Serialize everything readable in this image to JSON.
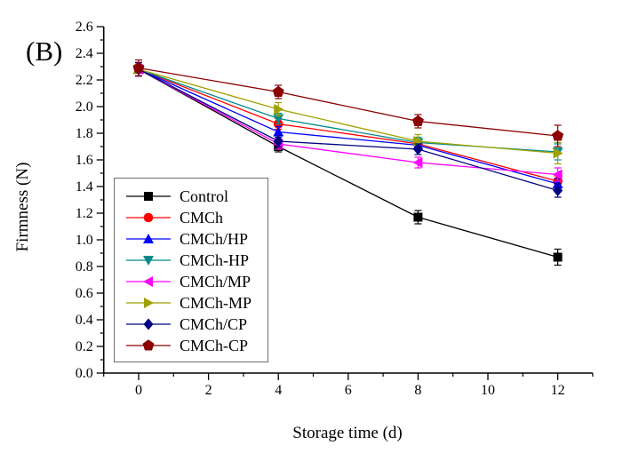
{
  "panel_label": "(B)",
  "chart_data": {
    "type": "line",
    "title": "",
    "xlabel": "Storage time (d)",
    "ylabel": "Firmness (N)",
    "x": [
      0,
      4,
      8,
      12
    ],
    "xlim": [
      -1,
      13
    ],
    "ylim": [
      0.0,
      2.6
    ],
    "grid": "off",
    "error_bars": true,
    "legend_position": "inside-middle-left",
    "x_major_ticks": [
      0,
      2,
      4,
      6,
      8,
      10,
      12
    ],
    "x_tick_labels": [
      "0",
      "2",
      "4",
      "6",
      "8",
      "10",
      "12"
    ],
    "x_minor_ticks": [
      -1,
      1,
      3,
      5,
      7,
      9,
      11,
      13
    ],
    "y_major_ticks": [
      0.0,
      0.2,
      0.4,
      0.6,
      0.8,
      1.0,
      1.2,
      1.4,
      1.6,
      1.8,
      2.0,
      2.2,
      2.4,
      2.6
    ],
    "y_tick_labels": [
      "0.0",
      "0.2",
      "0.4",
      "0.6",
      "0.8",
      "1.0",
      "1.2",
      "1.4",
      "1.6",
      "1.8",
      "2.0",
      "2.2",
      "2.4",
      "2.6"
    ],
    "y_minor_step": 0.1,
    "series": [
      {
        "name": "Control",
        "color": "#000000",
        "marker": "square",
        "values": [
          2.28,
          1.7,
          1.17,
          0.87
        ],
        "errors": [
          0.05,
          0.04,
          0.05,
          0.06
        ]
      },
      {
        "name": "CMCh",
        "color": "#FF0000",
        "marker": "circle",
        "values": [
          2.28,
          1.87,
          1.72,
          1.44
        ],
        "errors": [
          0.05,
          0.04,
          0.03,
          0.04
        ]
      },
      {
        "name": "CMCh/HP",
        "color": "#0000FF",
        "marker": "triangle-up",
        "values": [
          2.28,
          1.81,
          1.71,
          1.42
        ],
        "errors": [
          0.05,
          0.04,
          0.03,
          0.04
        ]
      },
      {
        "name": "CMCh-HP",
        "color": "#008B8B",
        "marker": "triangle-down",
        "values": [
          2.28,
          1.91,
          1.73,
          1.66
        ],
        "errors": [
          0.05,
          0.04,
          0.04,
          0.06
        ]
      },
      {
        "name": "CMCh/MP",
        "color": "#FF00FF",
        "marker": "triangle-left",
        "values": [
          2.28,
          1.72,
          1.58,
          1.49
        ],
        "errors": [
          0.05,
          0.04,
          0.04,
          0.05
        ]
      },
      {
        "name": "CMCh-MP",
        "color": "#A0A000",
        "marker": "triangle-right",
        "values": [
          2.28,
          1.98,
          1.74,
          1.65
        ],
        "errors": [
          0.05,
          0.05,
          0.05,
          0.08
        ]
      },
      {
        "name": "CMCh/CP",
        "color": "#000080",
        "marker": "diamond",
        "values": [
          2.28,
          1.74,
          1.68,
          1.37
        ],
        "errors": [
          0.05,
          0.04,
          0.04,
          0.05
        ]
      },
      {
        "name": "CMCh-CP",
        "color": "#8B0000",
        "marker": "pentagon",
        "values": [
          2.29,
          2.11,
          1.89,
          1.78
        ],
        "errors": [
          0.06,
          0.05,
          0.05,
          0.08
        ]
      }
    ]
  }
}
